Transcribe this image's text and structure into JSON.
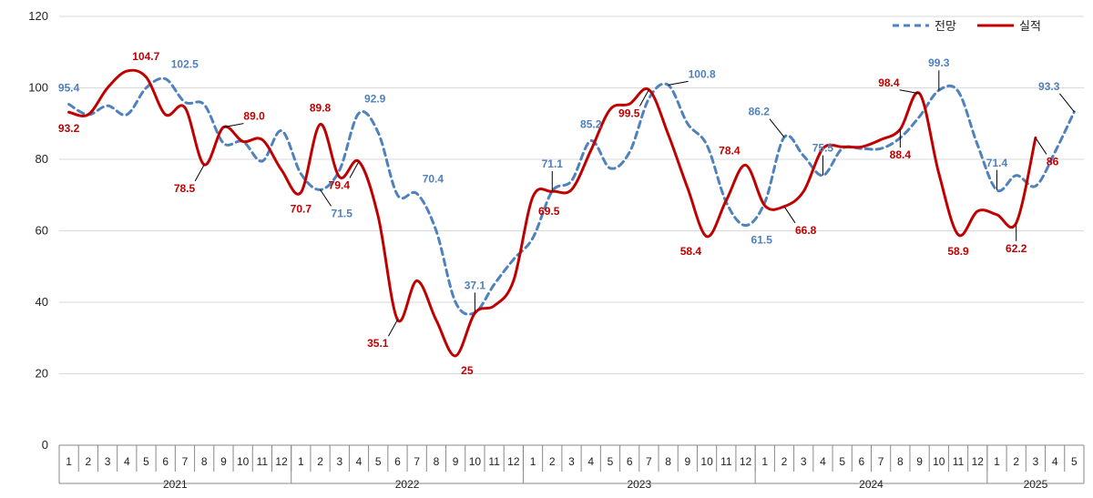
{
  "chart_data": {
    "type": "line",
    "title": "",
    "xlabel": "",
    "ylabel": "",
    "ylim": [
      0,
      120
    ],
    "yticks": [
      0,
      20,
      40,
      60,
      80,
      100,
      120
    ],
    "grid": true,
    "legend_position": "top-right",
    "years": [
      {
        "label": "2021",
        "months": 12
      },
      {
        "label": "2022",
        "months": 12
      },
      {
        "label": "2023",
        "months": 12
      },
      {
        "label": "2024",
        "months": 12
      },
      {
        "label": "2025",
        "months": 5
      }
    ],
    "month_labels": [
      "1",
      "2",
      "3",
      "4",
      "5",
      "6",
      "7",
      "8",
      "9",
      "10",
      "11",
      "12",
      "1",
      "2",
      "3",
      "4",
      "5",
      "6",
      "7",
      "8",
      "9",
      "10",
      "11",
      "12",
      "1",
      "2",
      "3",
      "4",
      "5",
      "6",
      "7",
      "8",
      "9",
      "10",
      "11",
      "12",
      "1",
      "2",
      "3",
      "4",
      "5",
      "6",
      "7",
      "8",
      "9",
      "10",
      "11",
      "12",
      "1",
      "2",
      "3",
      "4",
      "5"
    ],
    "series": [
      {
        "name": "전망",
        "color": "#4F81BD",
        "style": "dashed",
        "values": [
          95.4,
          92.5,
          95.0,
          92.5,
          100.0,
          102.5,
          96.0,
          95.3,
          84.5,
          85.0,
          79.5,
          88.0,
          76.0,
          71.5,
          77.0,
          92.9,
          87.5,
          70.0,
          70.4,
          60.0,
          40.0,
          37.1,
          45.0,
          52.0,
          58.0,
          71.1,
          74.0,
          85.2,
          77.5,
          82.0,
          97.0,
          100.8,
          90.0,
          84.0,
          68.0,
          61.5,
          68.0,
          86.2,
          81.0,
          75.5,
          83.0,
          83.0,
          83.0,
          86.0,
          92.0,
          99.3,
          99.0,
          84.0,
          71.4,
          75.5,
          72.5,
          82.0,
          93.3
        ]
      },
      {
        "name": "실적",
        "color": "#C00000",
        "style": "solid",
        "values": [
          93.2,
          92.5,
          100.0,
          104.7,
          103.0,
          92.5,
          94.5,
          78.5,
          89.0,
          85.0,
          85.5,
          77.0,
          70.7,
          89.8,
          75.0,
          79.4,
          64.0,
          35.1,
          46.0,
          35.0,
          25.0,
          37.0,
          39.0,
          46.0,
          69.5,
          71.0,
          71.5,
          82.5,
          94.0,
          95.5,
          99.5,
          87.0,
          72.0,
          58.4,
          68.5,
          78.4,
          67.0,
          66.8,
          71.0,
          83.0,
          83.5,
          83.5,
          85.5,
          88.4,
          98.4,
          76.0,
          58.9,
          65.5,
          64.5,
          62.2,
          86.0
        ]
      }
    ],
    "data_labels": [
      {
        "series": 0,
        "index": 0,
        "text": "95.4",
        "pos": "above"
      },
      {
        "series": 0,
        "index": 5,
        "text": "102.5",
        "pos": "above-right"
      },
      {
        "series": 0,
        "index": 13,
        "text": "71.5",
        "pos": "leader-below-right"
      },
      {
        "series": 0,
        "index": 15,
        "text": "92.9",
        "pos": "above-right"
      },
      {
        "series": 0,
        "index": 18,
        "text": "70.4",
        "pos": "above-right"
      },
      {
        "series": 0,
        "index": 21,
        "text": "37.1",
        "pos": "leader-above"
      },
      {
        "series": 0,
        "index": 25,
        "text": "71.1",
        "pos": "leader-above"
      },
      {
        "series": 0,
        "index": 27,
        "text": "85.2",
        "pos": "above"
      },
      {
        "series": 0,
        "index": 31,
        "text": "100.8",
        "pos": "leader-right"
      },
      {
        "series": 0,
        "index": 35,
        "text": "61.5",
        "pos": "below-right"
      },
      {
        "series": 0,
        "index": 37,
        "text": "86.2",
        "pos": "leader-above-left"
      },
      {
        "series": 0,
        "index": 39,
        "text": "75.5",
        "pos": "leader-above"
      },
      {
        "series": 0,
        "index": 45,
        "text": "99.3",
        "pos": "leader-above"
      },
      {
        "series": 0,
        "index": 48,
        "text": "71.4",
        "pos": "leader-above"
      },
      {
        "series": 0,
        "index": 52,
        "text": "93.3",
        "pos": "leader-above-left"
      },
      {
        "series": 1,
        "index": 0,
        "text": "93.2",
        "pos": "below"
      },
      {
        "series": 1,
        "index": 3,
        "text": "104.7",
        "pos": "above-right"
      },
      {
        "series": 1,
        "index": 7,
        "text": "78.5",
        "pos": "leader-below-left"
      },
      {
        "series": 1,
        "index": 8,
        "text": "89.0",
        "pos": "leader-right"
      },
      {
        "series": 1,
        "index": 12,
        "text": "70.7",
        "pos": "below"
      },
      {
        "series": 1,
        "index": 13,
        "text": "89.8",
        "pos": "above"
      },
      {
        "series": 1,
        "index": 15,
        "text": "79.4",
        "pos": "leader-below-left"
      },
      {
        "series": 1,
        "index": 17,
        "text": "35.1",
        "pos": "leader-below-left"
      },
      {
        "series": 1,
        "index": 20,
        "text": "25",
        "pos": "below-right"
      },
      {
        "series": 1,
        "index": 24,
        "text": "69.5",
        "pos": "below-right"
      },
      {
        "series": 1,
        "index": 30,
        "text": "99.5",
        "pos": "leader-below-left"
      },
      {
        "series": 1,
        "index": 33,
        "text": "58.4",
        "pos": "below-left"
      },
      {
        "series": 1,
        "index": 35,
        "text": "78.4",
        "pos": "above-left"
      },
      {
        "series": 1,
        "index": 37,
        "text": "66.8",
        "pos": "leader-below-right"
      },
      {
        "series": 1,
        "index": 44,
        "text": "98.4",
        "pos": "leader-left"
      },
      {
        "series": 1,
        "index": 43,
        "text": "88.4",
        "pos": "leader-below"
      },
      {
        "series": 1,
        "index": 46,
        "text": "58.9",
        "pos": "below"
      },
      {
        "series": 1,
        "index": 49,
        "text": "62.2",
        "pos": "leader-below"
      },
      {
        "series": 1,
        "index": 50,
        "text": "86",
        "pos": "leader-below-right"
      }
    ]
  }
}
